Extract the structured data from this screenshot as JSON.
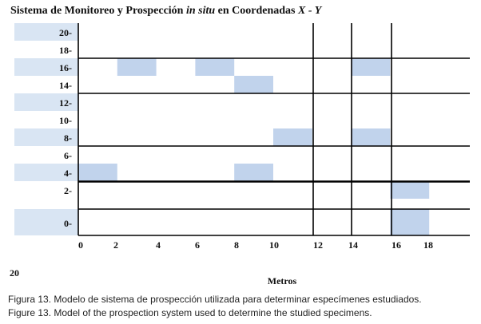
{
  "figure": {
    "title": "Sistema de Monitoreo y Prospección in situ en Coordenadas X - Y",
    "page_number": "20",
    "x_axis_label": "Metros",
    "caption_es": "Figura 13. Modelo de sistema de prospección utilizada para determinar especímenes estudiados.",
    "caption_en": "Figure 13. Model of the prospection system used to determine the studied specimens."
  },
  "chart_data": {
    "type": "heatmap",
    "title": "Sistema de Monitoreo y Prospección in situ en Coordenadas X - Y",
    "xlabel": "Metros",
    "ylabel": "",
    "x_ticks": [
      "0",
      "2",
      "4",
      "6",
      "8",
      "10",
      "12",
      "14",
      "16",
      "18"
    ],
    "y_ticks": [
      "20-",
      "18-",
      "16-",
      "14-",
      "12-",
      "10-",
      "8-",
      "6-",
      "4-",
      "2-",
      "0-"
    ],
    "highlighted_cells": [
      {
        "x": [
          2,
          4
        ],
        "y": 16
      },
      {
        "x": [
          6,
          8
        ],
        "y": 16
      },
      {
        "x": [
          14,
          16
        ],
        "y": 16
      },
      {
        "x": [
          8,
          10
        ],
        "y": 14
      },
      {
        "x": [
          10,
          12
        ],
        "y": 8
      },
      {
        "x": [
          14,
          16
        ],
        "y": 8
      },
      {
        "x": [
          0,
          2
        ],
        "y": 4
      },
      {
        "x": [
          8,
          10
        ],
        "y": 4
      },
      {
        "x": [
          16,
          18
        ],
        "y": 2
      },
      {
        "x": [
          16,
          18
        ],
        "y": 0
      }
    ],
    "vertical_gridlines_at": [
      12,
      14,
      16
    ],
    "grid": true,
    "colors": {
      "cell": "#c1d3ec",
      "label_band": "#d9e5f3",
      "line": "#000000"
    }
  }
}
